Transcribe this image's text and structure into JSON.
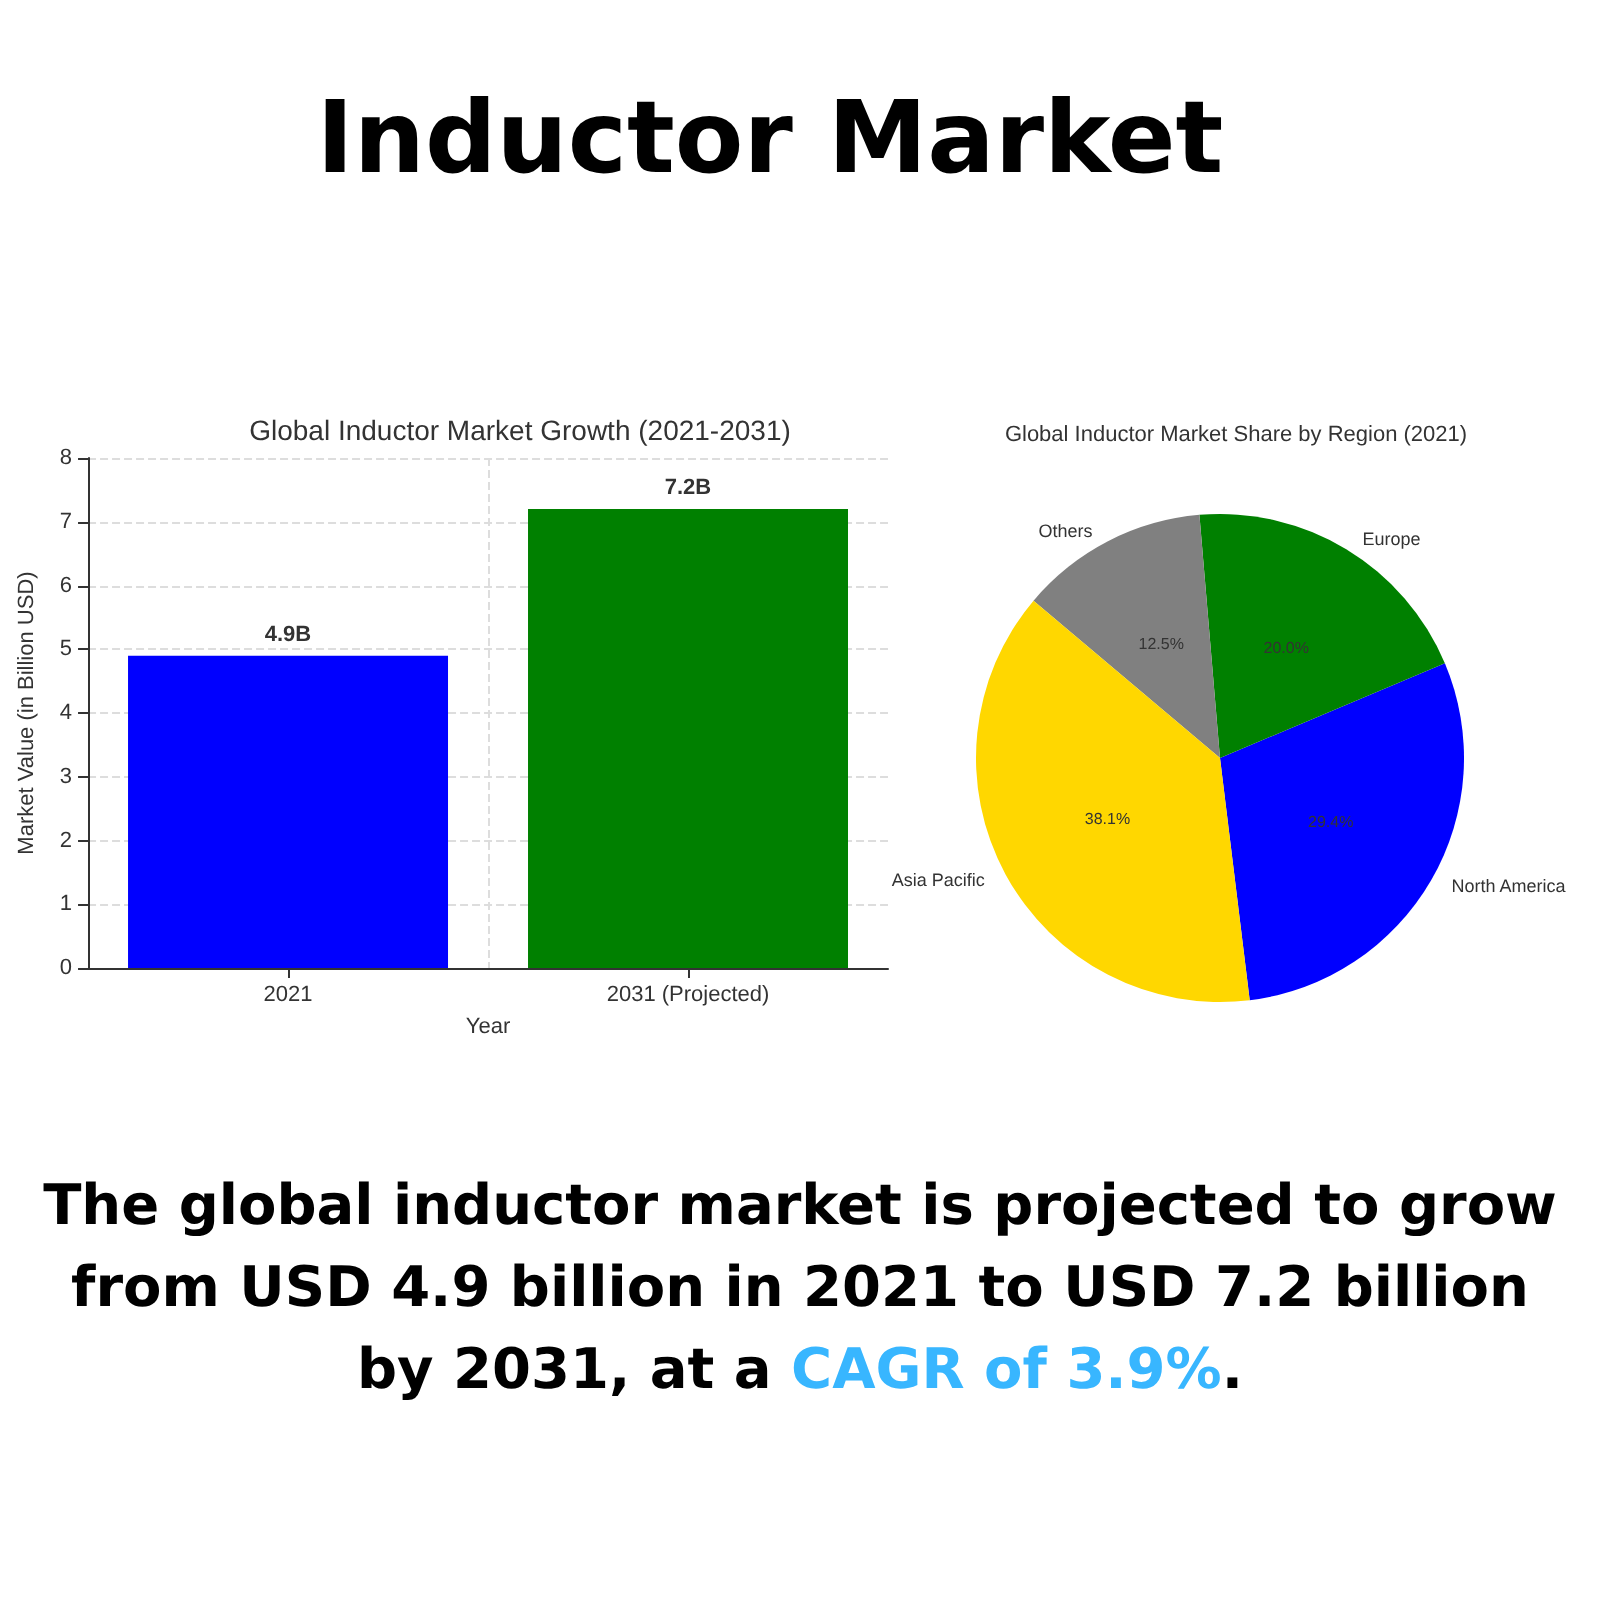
{
  "chart_data": [
    {
      "type": "bar",
      "title": "Global Inductor Market Growth (2021-2031)",
      "xlabel": "Year",
      "ylabel": "Market Value (in Billion USD)",
      "categories": [
        "2021",
        "2031 (Projected)"
      ],
      "values": [
        4.9,
        7.2
      ],
      "colors": [
        "#0000ff",
        "#008000"
      ],
      "value_labels": [
        "4.9B",
        "7.2B"
      ],
      "ylim": [
        0,
        8
      ],
      "yticks": [
        0,
        1,
        2,
        3,
        4,
        5,
        6,
        7,
        8
      ],
      "grid": true
    },
    {
      "type": "pie",
      "title": "Global Inductor Market Share by Region (2021)",
      "categories": [
        "North America",
        "Europe",
        "Others",
        "Asia Pacific"
      ],
      "values": [
        29.4,
        20.0,
        12.5,
        38.1
      ],
      "colors": [
        "#0000ff",
        "#008000",
        "#808080",
        "#ffd700"
      ],
      "value_labels": [
        "29.4%",
        "20.0%",
        "12.5%",
        "38.1%"
      ]
    },
    {
      "type": "other",
      "title": "Inductor Market",
      "annotations": [
        "The global inductor market is projected to grow from USD 4.9 billion in 2021 to USD 7.2 billion by 2031, at a ",
        "CAGR of 3.9%",
        "."
      ]
    }
  ]
}
